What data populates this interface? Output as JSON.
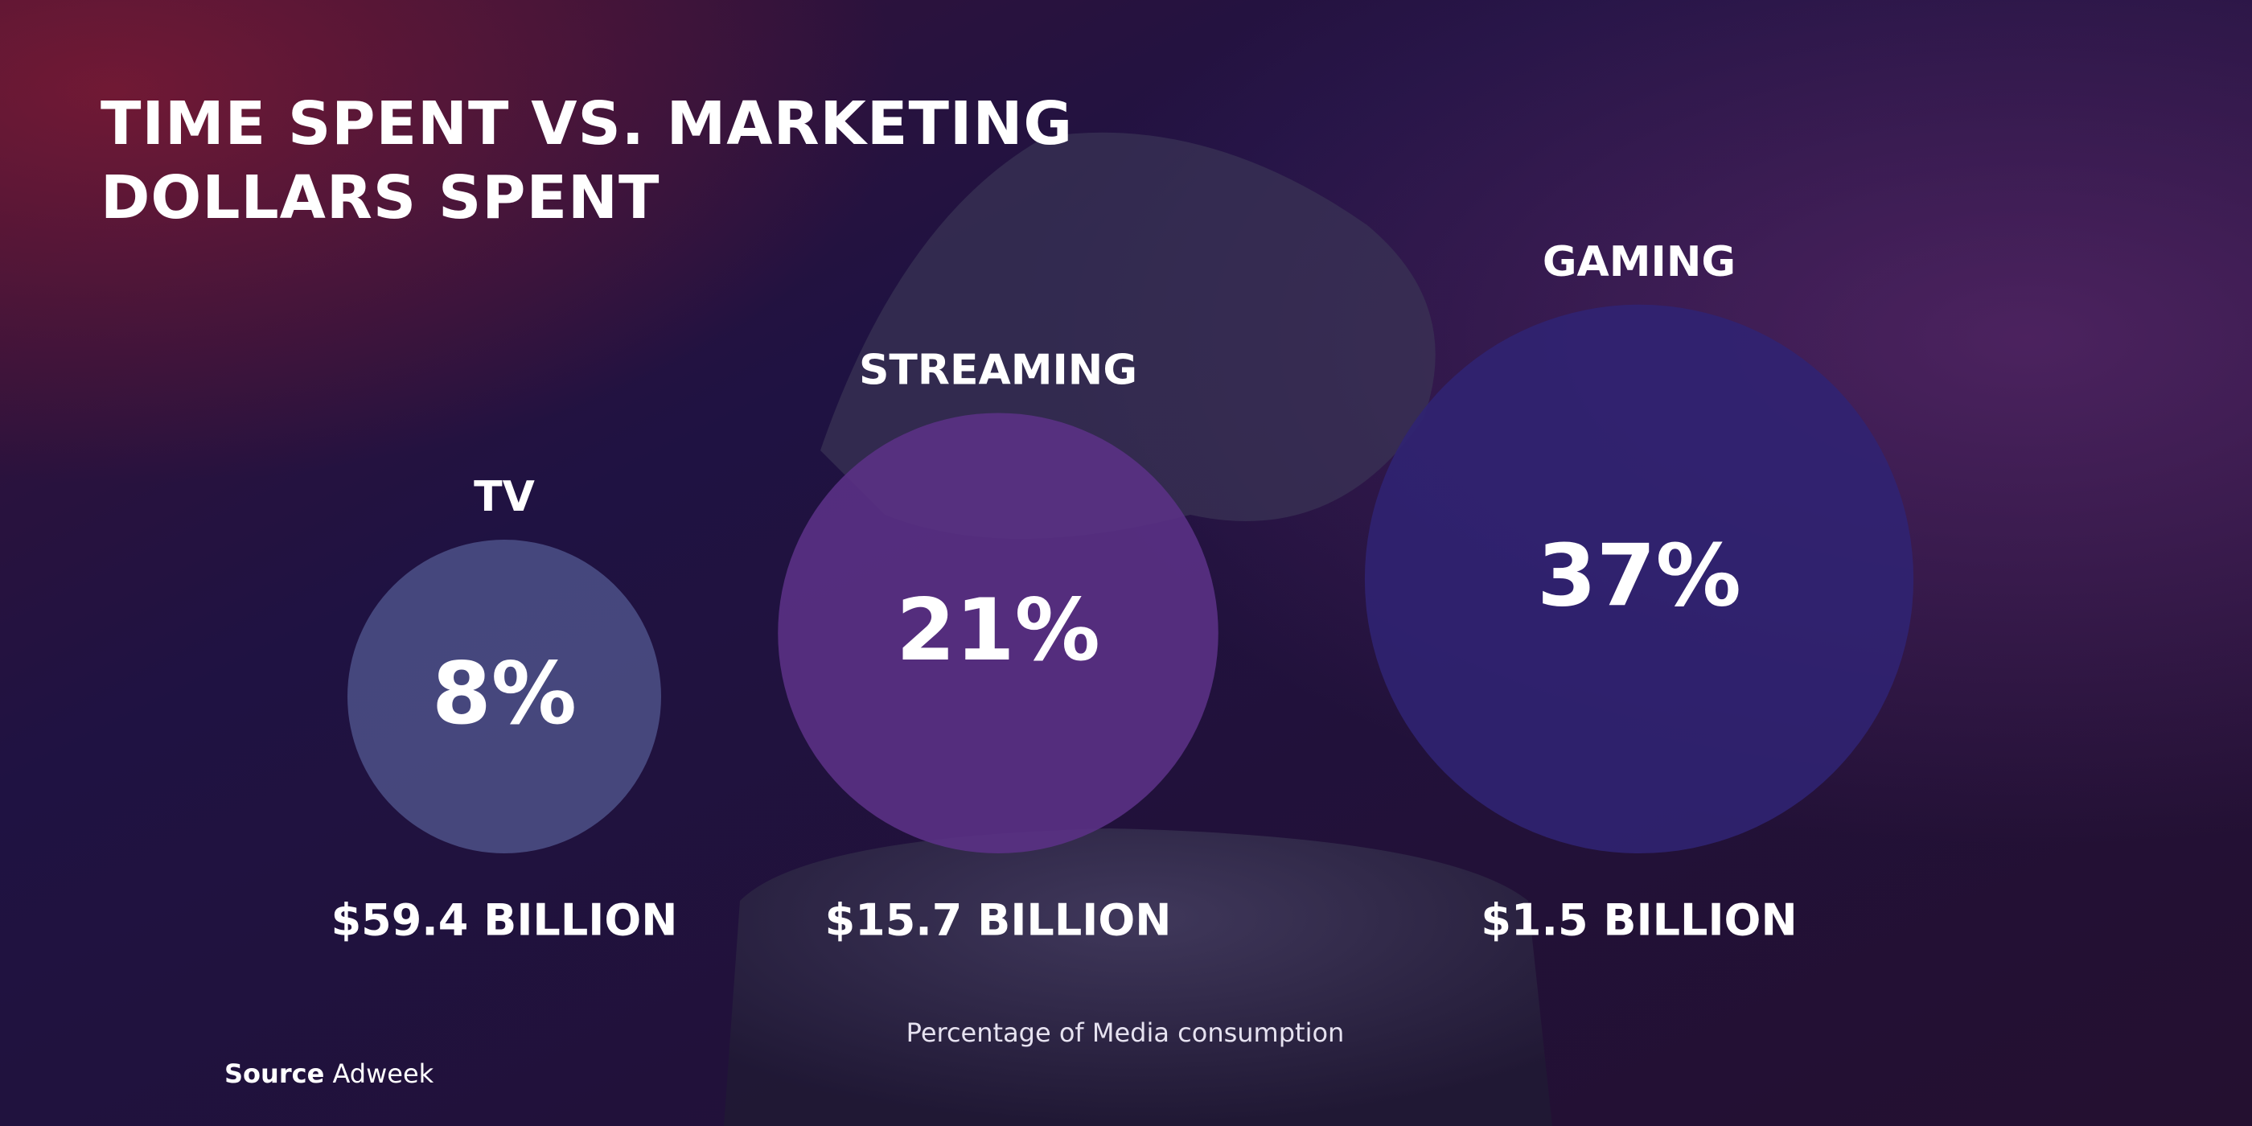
{
  "chart_data": {
    "type": "bubble",
    "title": "TIME SPENT VS. MARKETING DOLLARS SPENT",
    "categories": [
      "TV",
      "STREAMING",
      "GAMING"
    ],
    "values": [
      8,
      21,
      37
    ],
    "value_labels": [
      "8%",
      "21%",
      "37%"
    ],
    "spend_labels": [
      "$59.4 BILLION",
      "$15.7 BILLION",
      "$1.5 BILLION"
    ],
    "colors": [
      "#4b4e85",
      "#5b3186",
      "#302373"
    ],
    "x_label": "Percentage of Media consumption",
    "source": {
      "label": "Source",
      "text": "Adweek"
    }
  }
}
